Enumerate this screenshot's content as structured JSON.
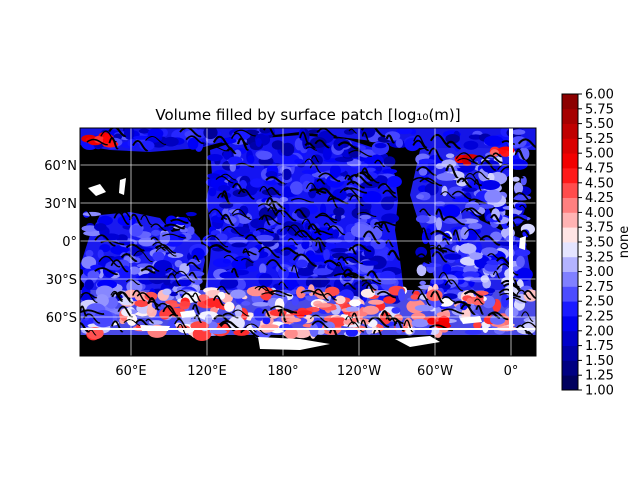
{
  "chart_data": {
    "type": "heatmap",
    "title": "Volume filled by surface patch [log₁₀(m)]",
    "projection": "plate-carree",
    "x_tick_labels": [
      "60°E",
      "120°E",
      "180°",
      "120°W",
      "60°W",
      "0°"
    ],
    "y_tick_labels": [
      "60°N",
      "30°N",
      "0°",
      "30°S",
      "60°S"
    ],
    "grid": true,
    "colorbar": {
      "label": "none",
      "colormap": "seismic",
      "range": [
        1.0,
        6.0
      ],
      "tick_labels": [
        "1.00",
        "1.25",
        "1.50",
        "1.75",
        "2.00",
        "2.25",
        "2.50",
        "2.75",
        "3.00",
        "3.25",
        "3.50",
        "3.75",
        "4.00",
        "4.25",
        "4.50",
        "4.75",
        "5.00",
        "5.25",
        "5.50",
        "5.75",
        "6.00"
      ]
    },
    "land_color": "#000000"
  }
}
